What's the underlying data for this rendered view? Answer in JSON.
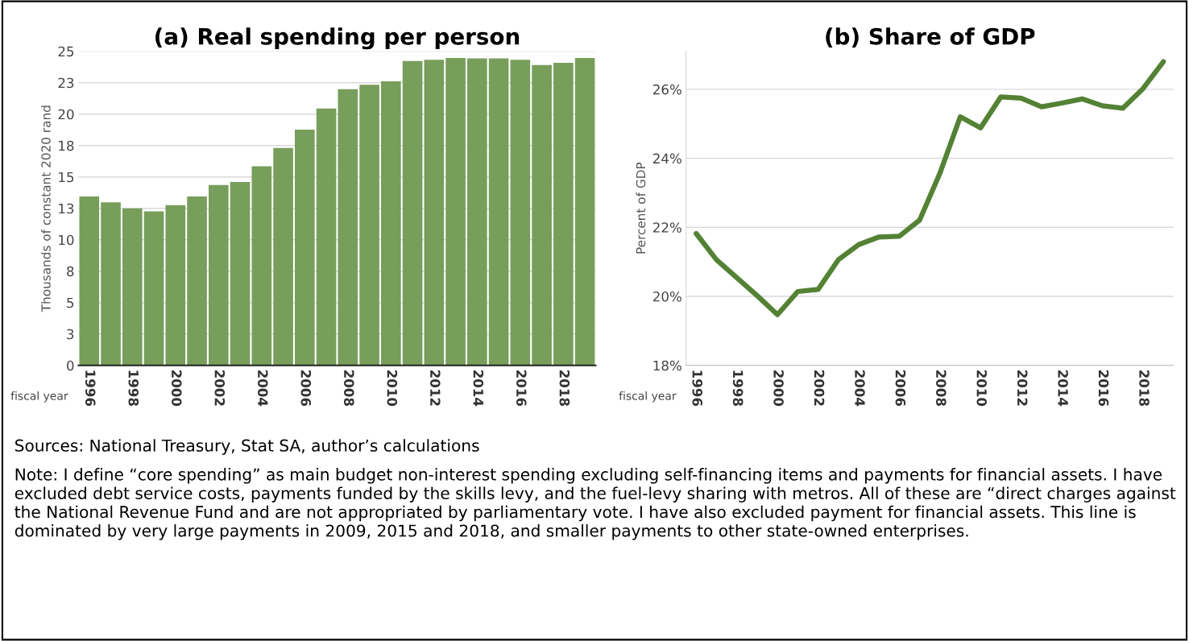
{
  "chart_data": [
    {
      "type": "bar",
      "title": "(a) Real spending per person",
      "xlabel": "fiscal year",
      "ylabel": "Thousands of constant 2020 rand",
      "categories": [
        "1996",
        null,
        "1998",
        null,
        "2000",
        null,
        "2002",
        null,
        "2004",
        null,
        "2006",
        null,
        "2008",
        null,
        "2010",
        null,
        "2012",
        null,
        "2014",
        null,
        "2016",
        null,
        "2018",
        null
      ],
      "values": [
        13.45,
        12.97,
        12.49,
        12.25,
        12.76,
        13.45,
        14.35,
        14.59,
        15.85,
        17.3,
        18.77,
        20.45,
        21.98,
        22.34,
        22.61,
        24.23,
        24.32,
        24.47,
        24.44,
        24.44,
        24.32,
        23.9,
        24.08,
        24.47
      ],
      "color": "#779e5b",
      "ylim": [
        0,
        25
      ],
      "yticks": [
        0,
        {
          "value": 2.5,
          "label": "3"
        },
        5,
        {
          "value": 7.5,
          "label": "8"
        },
        10,
        {
          "value": 12.5,
          "label": "13"
        },
        15,
        {
          "value": 17.5,
          "label": "18"
        },
        20,
        {
          "value": 22.5,
          "label": "23"
        },
        25
      ],
      "grid": "y",
      "legend": false
    },
    {
      "type": "line",
      "title": "(b) Share of GDP",
      "xlabel": "fiscal year",
      "ylabel": "Percent of GDP",
      "categories": [
        "1996",
        null,
        "1998",
        null,
        "2000",
        null,
        "2002",
        null,
        "2004",
        null,
        "2006",
        null,
        "2008",
        null,
        "2010",
        null,
        "2012",
        null,
        "2014",
        null,
        "2016",
        null,
        "2018",
        null
      ],
      "values": [
        21.82,
        21.06,
        20.54,
        20.02,
        19.47,
        20.14,
        20.2,
        21.06,
        21.5,
        21.72,
        21.74,
        22.21,
        23.57,
        25.2,
        24.88,
        25.78,
        25.74,
        25.49,
        25.6,
        25.72,
        25.52,
        25.45,
        26.02,
        26.8
      ],
      "color": "#548235",
      "ylim": [
        18,
        27.1
      ],
      "yticks": [
        {
          "value": 18,
          "label": "18%"
        },
        {
          "value": 20,
          "label": "20%"
        },
        {
          "value": 22,
          "label": "22%"
        },
        {
          "value": 24,
          "label": "24%"
        },
        {
          "value": 26,
          "label": "26%"
        }
      ],
      "grid": "y",
      "legend": false,
      "marker": "none",
      "line_style": "solid",
      "annotations": [
        "Sources: National Treasury, Stat SA, author’s calculations",
        "Note: I define “core spending” as main budget non-interest spending excluding self-financing items and payments for financial assets. I have excluded debt service costs, payments funded by the skills levy, and the fuel-levy sharing with metros. All of these are “direct charges against the National Revenue Fund and are not appropriated by parliamentary vote. I have also excluded payment for financial assets. This line is dominated by very large payments in 2009, 2015 and 2018, and smaller payments to other state-owned enterprises."
      ]
    }
  ]
}
